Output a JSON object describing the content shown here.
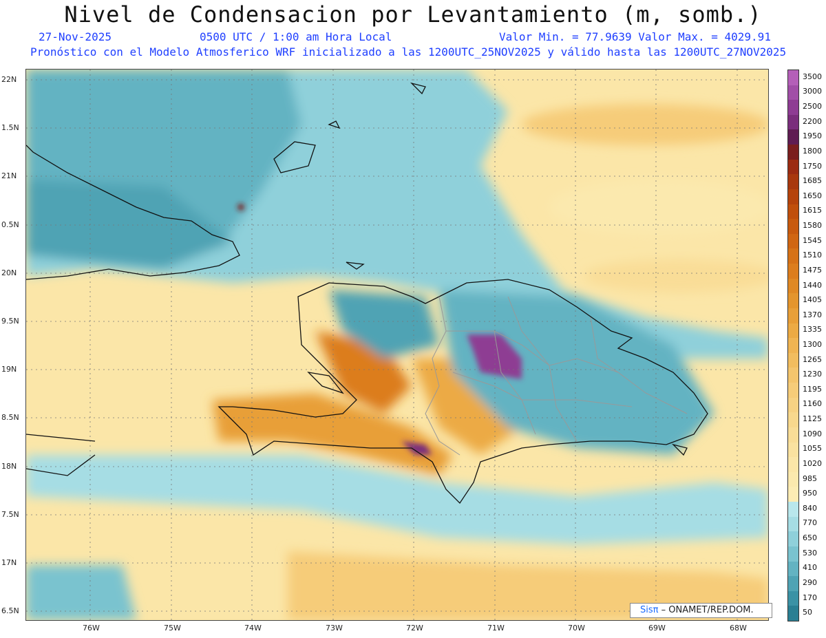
{
  "header": {
    "title": "Nivel de Condensacion por Levantamiento (m, somb.)",
    "date": "27-Nov-2025",
    "time": "0500 UTC / 1:00 am Hora Local",
    "minmax": "Valor Min. = 77.9639  Valor Max. = 4029.91",
    "forecast": "Pronóstico con el Modelo Atmosferico WRF inicializado a las 1200UTC_25NOV2025 y válido hasta las  1200UTC_27NOV2025"
  },
  "map": {
    "lat_labels": [
      "22N",
      "1.5N",
      "21N",
      "0.5N",
      "20N",
      "9.5N",
      "19N",
      "8.5N",
      "18N",
      "7.5N",
      "17N",
      "6.5N"
    ],
    "lon_labels": [
      "76W",
      "75W",
      "74W",
      "73W",
      "72W",
      "71W",
      "70W",
      "69W",
      "68W"
    ],
    "credit_prefix": "Sisπ",
    "credit_text": " – ONAMET/REP.DOM."
  },
  "colorbar": {
    "labels": [
      "3500",
      "3000",
      "2500",
      "2200",
      "1950",
      "1800",
      "1750",
      "1685",
      "1650",
      "1615",
      "1580",
      "1545",
      "1510",
      "1475",
      "1440",
      "1405",
      "1370",
      "1335",
      "1300",
      "1265",
      "1230",
      "1195",
      "1160",
      "1125",
      "1090",
      "1055",
      "1020",
      "985",
      "950",
      "840",
      "770",
      "650",
      "530",
      "410",
      "290",
      "170",
      "50"
    ],
    "colors": [
      "#b45fb8",
      "#a14ea7",
      "#8e3c93",
      "#7a2e7c",
      "#5f1c52",
      "#7a1e1e",
      "#9b2b12",
      "#a8380e",
      "#b5430c",
      "#c04f0c",
      "#c85a0e",
      "#d06612",
      "#d67217",
      "#dc7d1d",
      "#e08924",
      "#e4952d",
      "#e89f38",
      "#ecaa44",
      "#f0b452",
      "#f2bd5f",
      "#f4c56d",
      "#f6cc79",
      "#f7d283",
      "#f8d88d",
      "#f9dd97",
      "#fae2a0",
      "#fbe6a8",
      "#fbe9ae",
      "#fcecb4",
      "#b9e7ec",
      "#a6dde4",
      "#8fd0da",
      "#7ac3cf",
      "#63b3c2",
      "#4fa3b4",
      "#3b92a5",
      "#2a7f93"
    ]
  }
}
